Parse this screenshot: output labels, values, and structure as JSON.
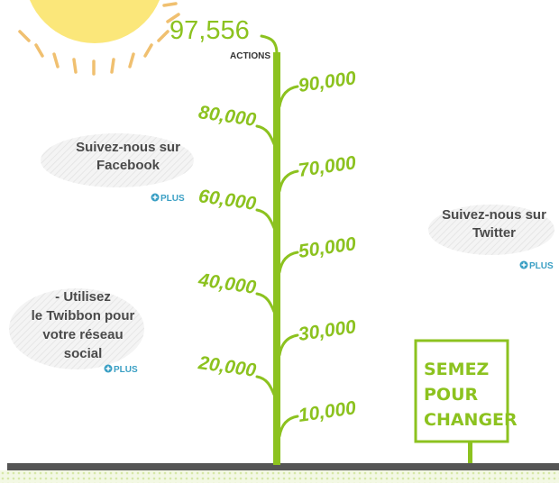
{
  "counter": {
    "value": "97,556",
    "unit": "ACTIONS"
  },
  "milestones": {
    "left": [
      "80,000",
      "60,000",
      "40,000",
      "20,000"
    ],
    "right": [
      "90,000",
      "70,000",
      "50,000",
      "30,000",
      "10,000"
    ]
  },
  "panels": [
    {
      "lines": [
        "Suivez-nous sur",
        "Facebook"
      ],
      "link": "PLUS"
    },
    {
      "lines": [
        "Suivez-nous sur",
        "Twitter"
      ],
      "link": "PLUS"
    },
    {
      "lines": [
        "- Utilisez",
        "le Twibbon pour",
        "votre réseau",
        "social"
      ],
      "link": "PLUS"
    }
  ],
  "sign": [
    "SEMEZ",
    "POUR",
    "CHANGER"
  ]
}
